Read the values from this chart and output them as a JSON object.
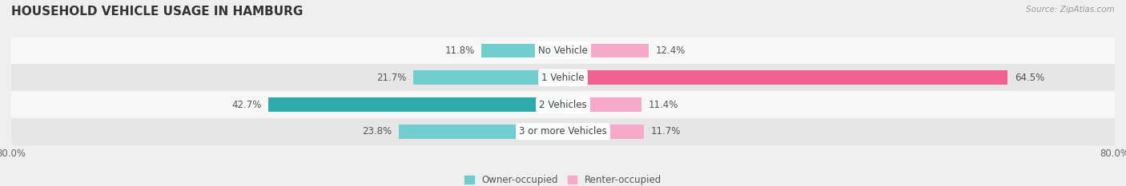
{
  "title": "HOUSEHOLD VEHICLE USAGE IN HAMBURG",
  "source": "Source: ZipAtlas.com",
  "categories": [
    "No Vehicle",
    "1 Vehicle",
    "2 Vehicles",
    "3 or more Vehicles"
  ],
  "owner_values": [
    11.8,
    21.7,
    42.7,
    23.8
  ],
  "renter_values": [
    12.4,
    64.5,
    11.4,
    11.7
  ],
  "owner_color_light": "#72cece",
  "owner_color_dark": "#2eaaaa",
  "renter_color_light": "#f8a8c8",
  "renter_color_dark": "#f06090",
  "axis_limit": 80.0,
  "bar_height": 0.52,
  "background_color": "#efefef",
  "row_bg_even": "#f7f7f7",
  "row_bg_odd": "#e6e6e6",
  "title_fontsize": 11,
  "label_fontsize": 8.5,
  "tick_fontsize": 8.5,
  "legend_fontsize": 8.5
}
